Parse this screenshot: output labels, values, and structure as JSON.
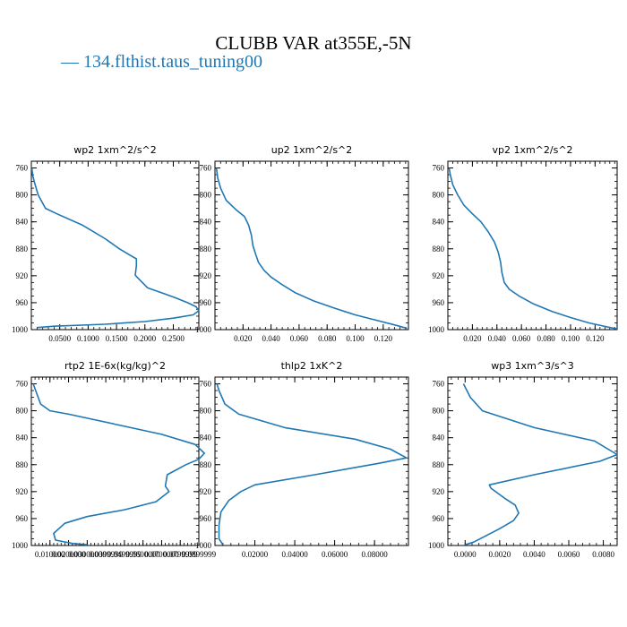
{
  "title": "CLUBB VAR at355E,-5N",
  "legend": {
    "label": "134.flthist.taus_tuning00",
    "color": "#1f77b4"
  },
  "chart_data": [
    {
      "type": "line",
      "title": "wp2   1xm^2/s^2",
      "xlim": [
        0,
        0.295
      ],
      "xticks": [
        0.05,
        0.1,
        0.15,
        0.2,
        0.25
      ],
      "xticklabels": [
        "0.0500",
        "0.1000",
        "0.1500",
        "0.2000",
        "0.2500"
      ],
      "ylim": [
        1000,
        750
      ],
      "yticks": [
        760,
        800,
        840,
        880,
        920,
        960,
        1000
      ],
      "series": [
        {
          "x": [
            0.001,
            0.002,
            0.005,
            0.012,
            0.025,
            0.045,
            0.09,
            0.13,
            0.155,
            0.175,
            0.185,
            0.185,
            0.183,
            0.186,
            0.205,
            0.235,
            0.255,
            0.275,
            0.29,
            0.295,
            0.285,
            0.25,
            0.2,
            0.13,
            0.04,
            0.01
          ],
          "y": [
            760,
            770,
            780,
            800,
            820,
            828,
            845,
            865,
            880,
            890,
            895,
            905,
            919,
            922,
            938,
            947,
            953,
            960,
            966,
            972,
            978,
            983,
            988,
            992,
            995,
            997
          ]
        }
      ]
    },
    {
      "type": "line",
      "title": "up2   1xm^2/s^2",
      "xlim": [
        0,
        0.138
      ],
      "xticks": [
        0.02,
        0.04,
        0.06,
        0.08,
        0.1,
        0.12
      ],
      "xticklabels": [
        "0.020",
        "0.040",
        "0.060",
        "0.080",
        "0.100",
        "0.120"
      ],
      "ylim": [
        1000,
        750
      ],
      "yticks": [
        760,
        800,
        840,
        880,
        920,
        960,
        1000
      ],
      "series": [
        {
          "x": [
            0.001,
            0.002,
            0.004,
            0.008,
            0.015,
            0.021,
            0.024,
            0.026,
            0.027,
            0.029,
            0.031,
            0.035,
            0.04,
            0.047,
            0.057,
            0.07,
            0.085,
            0.1,
            0.115,
            0.128,
            0.137
          ],
          "y": [
            760,
            775,
            790,
            808,
            822,
            832,
            845,
            860,
            875,
            888,
            900,
            912,
            922,
            932,
            945,
            957,
            968,
            978,
            986,
            993,
            998
          ]
        }
      ]
    },
    {
      "type": "line",
      "title": "vp2   1xm^2/s^2",
      "xlim": [
        0,
        0.138
      ],
      "xticks": [
        0.02,
        0.04,
        0.06,
        0.08,
        0.1,
        0.12
      ],
      "xticklabels": [
        "0.020",
        "0.040",
        "0.060",
        "0.080",
        "0.100",
        "0.120"
      ],
      "ylim": [
        1000,
        750
      ],
      "yticks": [
        760,
        800,
        840,
        880,
        920,
        960,
        1000
      ],
      "series": [
        {
          "x": [
            0.001,
            0.002,
            0.004,
            0.008,
            0.013,
            0.02,
            0.027,
            0.033,
            0.038,
            0.041,
            0.043,
            0.044,
            0.046,
            0.05,
            0.058,
            0.07,
            0.085,
            0.1,
            0.115,
            0.13,
            0.138
          ],
          "y": [
            760,
            770,
            785,
            800,
            815,
            828,
            840,
            855,
            870,
            885,
            900,
            915,
            930,
            940,
            950,
            962,
            973,
            982,
            990,
            996,
            999
          ]
        }
      ]
    },
    {
      "type": "line",
      "title": "rtp2   1E-6x(kg/kg)^2",
      "xlim": [
        0,
        0.09
      ],
      "xticks": [
        0.01,
        0.02,
        0.03,
        0.04,
        0.05,
        0.06,
        0.07,
        0.08,
        0.09
      ],
      "xticklabels": [
        "0.010000",
        "0.0200000",
        "0.03000000",
        "0.0399999",
        "0.0499999",
        "0.0600000",
        "0.0700000",
        "0.0799999",
        "0.0899999"
      ],
      "ylim": [
        1000,
        750
      ],
      "yticks": [
        760,
        800,
        840,
        880,
        920,
        960,
        1000
      ],
      "series": [
        {
          "x": [
            0.001,
            0.003,
            0.005,
            0.01,
            0.02,
            0.045,
            0.07,
            0.088,
            0.093,
            0.09,
            0.083,
            0.073,
            0.072,
            0.074,
            0.067,
            0.05,
            0.03,
            0.018,
            0.012,
            0.013,
            0.022,
            0.03
          ],
          "y": [
            760,
            775,
            790,
            800,
            805,
            820,
            835,
            850,
            863,
            872,
            880,
            895,
            912,
            920,
            935,
            947,
            957,
            967,
            982,
            992,
            997,
            999
          ]
        }
      ]
    },
    {
      "type": "line",
      "title": "thlp2   1xK^2",
      "xlim": [
        0,
        0.097
      ],
      "xticks": [
        0.02,
        0.04,
        0.06,
        0.08
      ],
      "xticklabels": [
        "0.02000",
        "0.04000",
        "0.06000",
        "0.08000"
      ],
      "ylim": [
        1000,
        750
      ],
      "yticks": [
        760,
        800,
        840,
        880,
        920,
        960,
        1000
      ],
      "series": [
        {
          "x": [
            0.001,
            0.002,
            0.005,
            0.012,
            0.035,
            0.07,
            0.088,
            0.096,
            0.082,
            0.05,
            0.02,
            0.013,
            0.007,
            0.003,
            0.002,
            0.002,
            0.004
          ],
          "y": [
            760,
            770,
            790,
            805,
            825,
            842,
            857,
            870,
            878,
            895,
            910,
            920,
            933,
            950,
            970,
            990,
            999
          ]
        }
      ]
    },
    {
      "type": "line",
      "title": "wp3   1xm^3/s^3",
      "xlim": [
        -0.001,
        0.0088
      ],
      "xticks": [
        0,
        0.002,
        0.004,
        0.006,
        0.008
      ],
      "xticklabels": [
        "0.0000",
        "0.0020",
        "0.0040",
        "0.0060",
        "0.0080"
      ],
      "ylim": [
        1000,
        750
      ],
      "yticks": [
        760,
        800,
        840,
        880,
        920,
        960,
        1000
      ],
      "series": [
        {
          "x": [
            -0.0001,
            0.0003,
            0.001,
            0.004,
            0.0075,
            0.0088,
            0.0078,
            0.004,
            0.0014,
            0.0015,
            0.0023,
            0.0029,
            0.0031,
            0.0028,
            0.002,
            0.0011,
            0.0005,
            0
          ],
          "y": [
            760,
            780,
            800,
            825,
            845,
            865,
            875,
            895,
            910,
            915,
            930,
            940,
            952,
            963,
            975,
            987,
            995,
            999
          ]
        }
      ]
    }
  ]
}
